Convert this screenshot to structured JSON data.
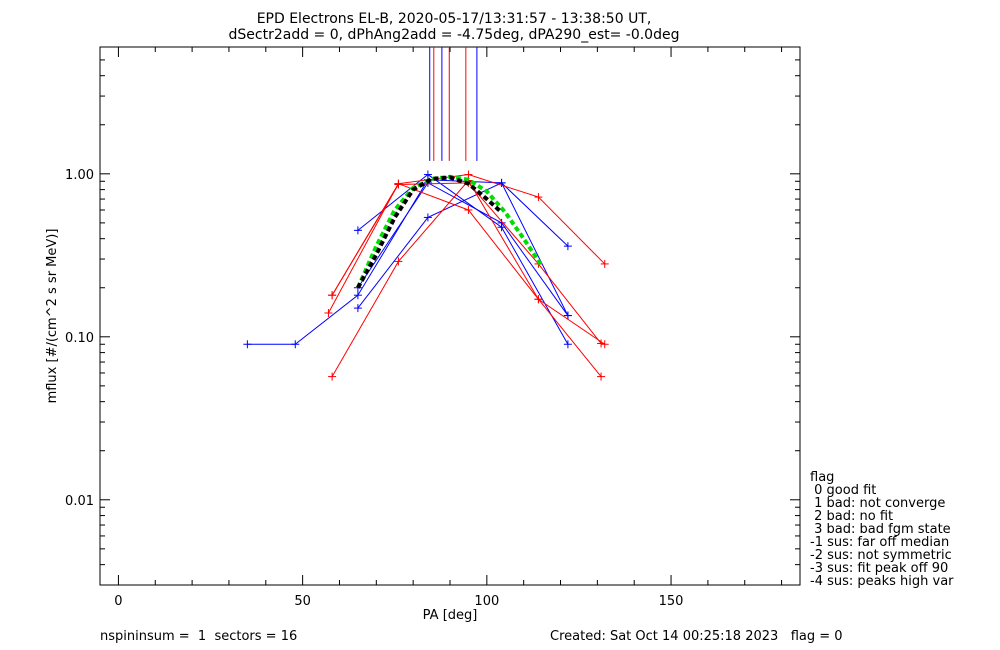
{
  "chart_data": {
    "type": "scatter",
    "title_line1": "EPD Electrons EL-B, 2020-05-17/13:31:57 - 13:38:50 UT,",
    "title_line2": "dSectr2add = 0, dPhAng2add = -4.75deg, dPA290_est=  -0.0deg",
    "xlabel": "PA [deg]",
    "ylabel": "mflux [#/(cm^2 s sr MeV)]",
    "xlim": [
      -5,
      185
    ],
    "ylim": [
      0.003,
      6
    ],
    "yscale": "log",
    "x_ticks": [
      0,
      50,
      100,
      150
    ],
    "x_tick_labels": [
      "0",
      "50",
      "100",
      "150"
    ],
    "y_ticks": [
      0.01,
      0.1,
      1.0
    ],
    "y_tick_labels": [
      "0.01",
      "0.10",
      "1.00"
    ],
    "vertical_markers": [
      {
        "x": 84.5,
        "color": "#0000ff"
      },
      {
        "x": 85.6,
        "color": "#ff0000"
      },
      {
        "x": 87.8,
        "color": "#0000ff"
      },
      {
        "x": 89.8,
        "color": "#ff0000"
      },
      {
        "x": 94.3,
        "color": "#ff0000"
      },
      {
        "x": 97.3,
        "color": "#0000ff"
      }
    ],
    "series": [
      {
        "color": "#0000ff",
        "x": [
          35,
          48,
          65,
          84,
          104,
          122
        ],
        "y": [
          0.09,
          0.09,
          0.18,
          0.92,
          0.88,
          0.36
        ]
      },
      {
        "color": "#0000ff",
        "x": [
          65,
          84,
          104,
          122
        ],
        "y": [
          0.45,
          0.99,
          0.47,
          0.09
        ]
      },
      {
        "color": "#0000ff",
        "x": [
          65,
          84,
          104,
          122
        ],
        "y": [
          0.15,
          0.54,
          0.88,
          0.135
        ]
      },
      {
        "color": "#0000ff",
        "x": [
          65,
          84,
          104,
          122
        ],
        "y": [
          0.2,
          0.88,
          0.5,
          0.135
        ]
      },
      {
        "color": "#ff0000",
        "x": [
          57,
          76,
          95,
          114,
          132
        ],
        "y": [
          0.14,
          0.87,
          0.99,
          0.72,
          0.28
        ]
      },
      {
        "color": "#ff0000",
        "x": [
          58,
          76,
          95,
          114,
          132
        ],
        "y": [
          0.18,
          0.87,
          0.6,
          0.17,
          0.09
        ]
      },
      {
        "color": "#ff0000",
        "x": [
          58,
          76,
          95,
          114,
          131
        ],
        "y": [
          0.057,
          0.29,
          0.91,
          0.17,
          0.057
        ]
      },
      {
        "color": "#ff0000",
        "x": [
          58,
          76,
          95,
          114,
          131
        ],
        "y": [
          0.18,
          0.86,
          0.88,
          0.28,
          0.091
        ]
      }
    ],
    "fits": [
      {
        "color": "#00dd00",
        "style": "dashed-thick",
        "x": [
          65,
          70,
          75,
          80,
          85,
          90,
          95,
          100,
          105,
          110,
          115
        ],
        "y": [
          0.2,
          0.36,
          0.6,
          0.82,
          0.93,
          0.96,
          0.92,
          0.78,
          0.58,
          0.4,
          0.27
        ]
      },
      {
        "color": "#000000",
        "style": "dashed-thick",
        "x": [
          65,
          70,
          75,
          80,
          85,
          90,
          95,
          100,
          104
        ],
        "y": [
          0.2,
          0.32,
          0.54,
          0.8,
          0.93,
          0.95,
          0.87,
          0.7,
          0.58
        ]
      }
    ],
    "legend": {
      "position": "right",
      "title": "flag",
      "entries": [
        " 0 good fit",
        " 1 bad: not converge",
        " 2 bad: no fit",
        " 3 bad: bad fgm state",
        "-1 sus: far off median",
        "-2 sus: not symmetric",
        "-3 sus: fit peak off 90",
        "-4 sus: peaks high var"
      ]
    }
  },
  "footer": {
    "left": "nspininsum =  1  sectors = 16",
    "right": "Created: Sat Oct 14 00:25:18 2023   flag = 0"
  }
}
